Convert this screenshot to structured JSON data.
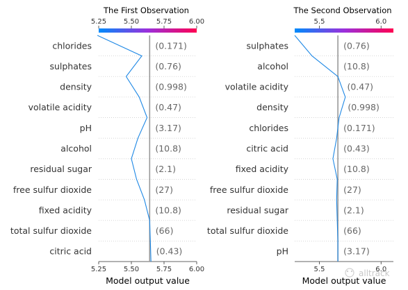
{
  "chart_data": [
    {
      "type": "line",
      "title": "The First Observation",
      "xlabel": "Model output value",
      "xlim": [
        5.25,
        6.0
      ],
      "xticks": [
        "5.25",
        "5.50",
        "5.75",
        "6.00"
      ],
      "base_value": 5.64,
      "colormap": [
        "#008bfb",
        "#7b3ff2",
        "#ff0051"
      ],
      "line_color": "#1e88e5",
      "features": [
        {
          "name": "chlorides",
          "value": "(0.171)"
        },
        {
          "name": "sulphates",
          "value": "(0.76)"
        },
        {
          "name": "density",
          "value": "(0.998)"
        },
        {
          "name": "volatile acidity",
          "value": "(0.47)"
        },
        {
          "name": "pH",
          "value": "(3.17)"
        },
        {
          "name": "alcohol",
          "value": "(10.8)"
        },
        {
          "name": "residual sugar",
          "value": "(2.1)"
        },
        {
          "name": "free sulfur dioxide",
          "value": "(27)"
        },
        {
          "name": "fixed acidity",
          "value": "(10.8)"
        },
        {
          "name": "total sulfur dioxide",
          "value": "(66)"
        },
        {
          "name": "citric acid",
          "value": "(0.43)"
        }
      ],
      "path_x": [
        5.24,
        5.58,
        5.46,
        5.56,
        5.62,
        5.55,
        5.5,
        5.54,
        5.6,
        5.64,
        5.645,
        5.65
      ]
    },
    {
      "type": "line",
      "title": "The Second Observation",
      "xlabel": "Model output value",
      "xlim": [
        5.3,
        6.1
      ],
      "xticks": [
        "5.5",
        "6.0"
      ],
      "base_value": 5.65,
      "colormap": [
        "#008bfb",
        "#7b3ff2",
        "#ff0051"
      ],
      "line_color": "#1e88e5",
      "features": [
        {
          "name": "sulphates",
          "value": "(0.76)"
        },
        {
          "name": "alcohol",
          "value": "(10.8)"
        },
        {
          "name": "volatile acidity",
          "value": "(0.47)"
        },
        {
          "name": "density",
          "value": "(0.998)"
        },
        {
          "name": "chlorides",
          "value": "(0.171)"
        },
        {
          "name": "citric acid",
          "value": "(0.43)"
        },
        {
          "name": "fixed acidity",
          "value": "(10.8)"
        },
        {
          "name": "free sulfur dioxide",
          "value": "(27)"
        },
        {
          "name": "residual sugar",
          "value": "(2.1)"
        },
        {
          "name": "total sulfur dioxide",
          "value": "(66)"
        },
        {
          "name": "pH",
          "value": "(3.17)"
        }
      ],
      "path_x": [
        5.3,
        5.44,
        5.65,
        5.71,
        5.66,
        5.64,
        5.61,
        5.645,
        5.64,
        5.645,
        5.65,
        5.65
      ]
    }
  ],
  "watermark": "alltrack"
}
